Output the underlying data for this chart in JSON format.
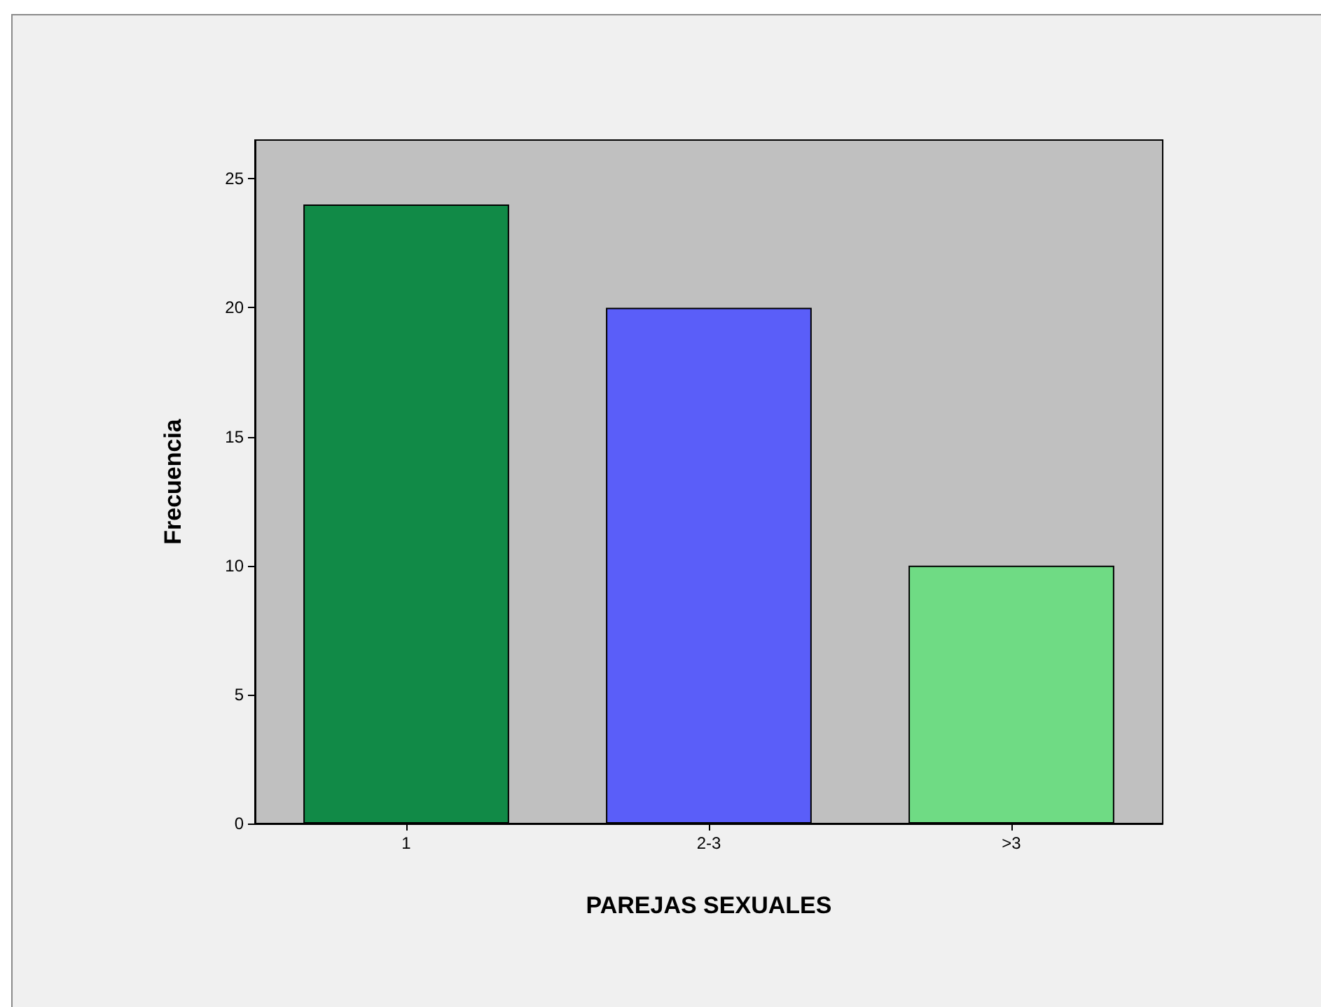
{
  "chart_data": {
    "type": "bar",
    "xlabel": "PAREJAS SEXUALES",
    "ylabel": "Frecuencia",
    "categories": [
      "1",
      "2-3",
      ">3"
    ],
    "values": [
      24,
      20,
      10
    ],
    "colors": [
      "#118a47",
      "#5a5ef9",
      "#6fdb84"
    ],
    "ylim": [
      0,
      26.5
    ],
    "yticks": [
      0,
      5,
      10,
      15,
      20,
      25
    ],
    "grid": false
  }
}
